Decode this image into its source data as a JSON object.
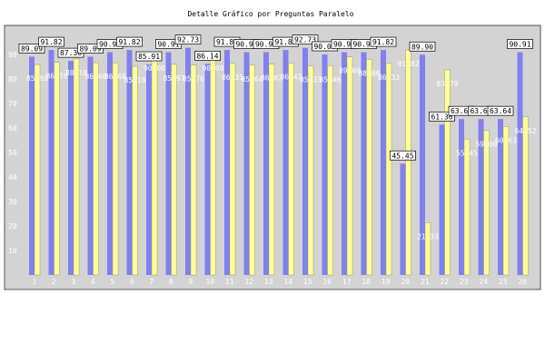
{
  "chart_data": {
    "type": "bar",
    "title": "Detalle Gráfico por Preguntas Paralelo",
    "xlabel": "",
    "ylabel": "",
    "ylim": [
      0,
      100
    ],
    "yticks": [
      10,
      20,
      30,
      40,
      50,
      60,
      70,
      80,
      90
    ],
    "grid": false,
    "legend": "none",
    "categories": [
      "1",
      "2",
      "3",
      "4",
      "5",
      "6",
      "7",
      "8",
      "9",
      "10",
      "11",
      "12",
      "13",
      "14",
      "15",
      "16",
      "17",
      "18",
      "19",
      "20",
      "21",
      "22",
      "23",
      "24",
      "25",
      "26"
    ],
    "series": [
      {
        "color": "#8080f0",
        "values": [
          89.09,
          91.82,
          87.36,
          89.09,
          90.91,
          91.82,
          85.91,
          90.91,
          92.73,
          86.14,
          91.82,
          90.91,
          90.91,
          91.82,
          92.73,
          90.0,
          90.91,
          90.91,
          91.82,
          45.45,
          89.9,
          61.36,
          63.64,
          63.64,
          63.64,
          90.91
        ],
        "labels": [
          "89.09",
          "91.82",
          "87.36",
          "89.09",
          "90.91",
          "91.82",
          "85.91",
          "90.91",
          "92.73",
          "86.14",
          "91.82",
          "90.91",
          "90.91",
          "91.82",
          "92.73",
          "90.00",
          "90.91",
          "90.91",
          "91.82",
          "45.45",
          "89.90",
          "61.36",
          "63.64",
          "63.64",
          "63.64",
          "90.91"
        ]
      },
      {
        "color": "#ffff99",
        "values": [
          85.9,
          86.78,
          88.18,
          86.6,
          86.6,
          85.18,
          90.0,
          85.97,
          85.76,
          90.0,
          86.31,
          85.64,
          86.02,
          86.47,
          85.33,
          85.46,
          89.0,
          88.0,
          86.33,
          91.82,
          21.33,
          83.7,
          55.45,
          59.0,
          60.63,
          64.52
        ],
        "labels": [
          "85.90",
          "86.78",
          "88.18",
          "86.60",
          "86.60",
          "85.18",
          "90.00",
          "85.97",
          "85.76",
          "90.00",
          "86.31",
          "85.64",
          "86.02",
          "86.47",
          "85.33",
          "85.46",
          "89.00",
          "88.00",
          "86.33",
          "91.82",
          "21.33",
          "83.70",
          "55.45",
          "59.00",
          "60.63",
          "64.52"
        ]
      }
    ]
  }
}
